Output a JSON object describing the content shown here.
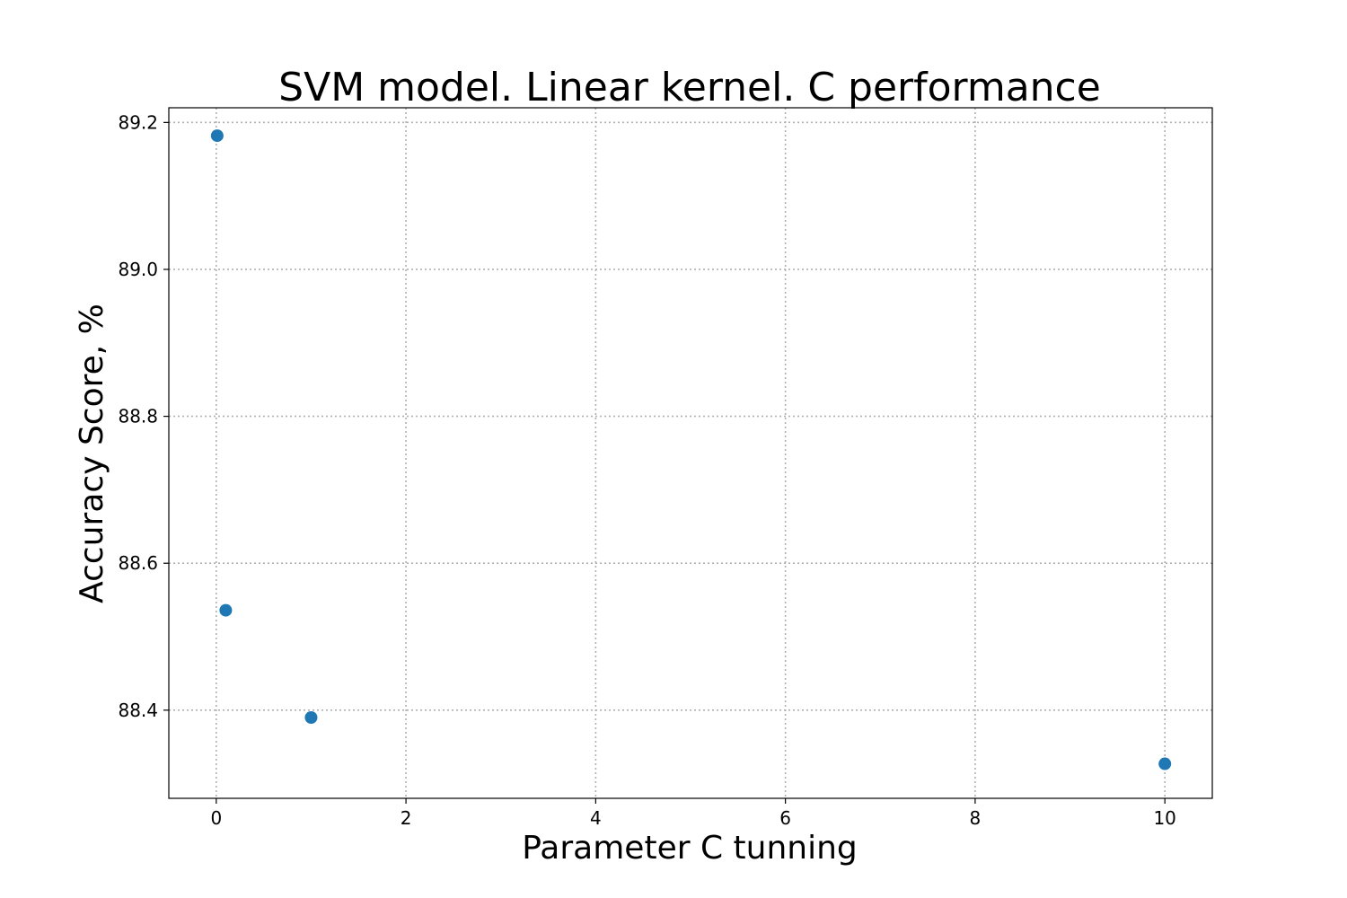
{
  "chart_data": {
    "type": "scatter",
    "title": "SVM model. Linear kernel. C performance",
    "xlabel": "Parameter C tunning",
    "ylabel": "Accuracy Score, %",
    "x": [
      0.01,
      0.1,
      1,
      10
    ],
    "y": [
      89.182,
      88.536,
      88.39,
      88.327
    ],
    "xlim": [
      -0.5,
      10.5
    ],
    "ylim": [
      88.28,
      89.22
    ],
    "xticks": [
      0,
      2,
      4,
      6,
      8,
      10
    ],
    "xtick_labels": [
      "0",
      "2",
      "4",
      "6",
      "8",
      "10"
    ],
    "yticks": [
      88.4,
      88.6,
      88.8,
      89.0,
      89.2
    ],
    "ytick_labels": [
      "88.4",
      "88.6",
      "88.8",
      "89.0",
      "89.2"
    ],
    "grid": true,
    "color": "#1f77b4"
  }
}
